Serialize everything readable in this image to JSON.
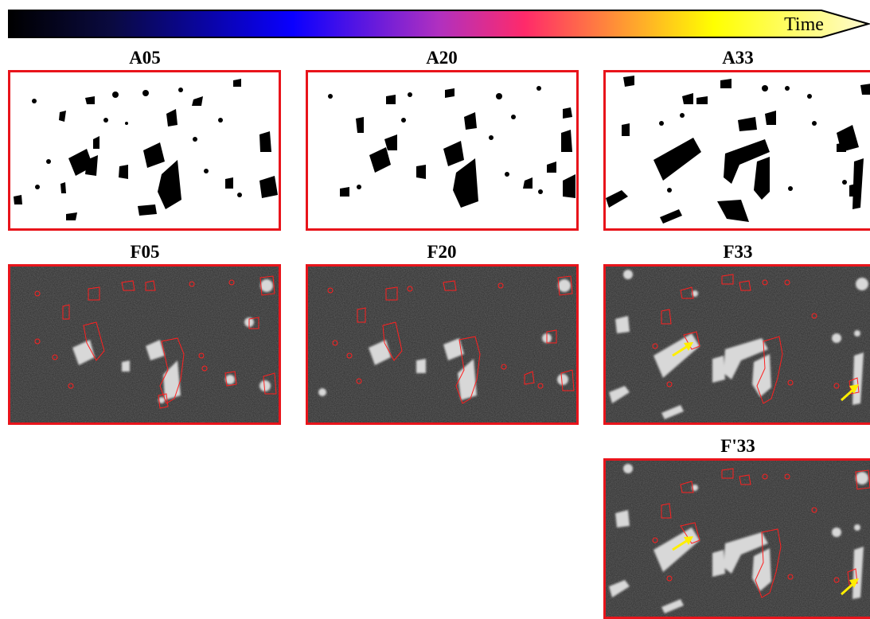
{
  "timebar": {
    "label": "Time"
  },
  "panels": {
    "A05": {
      "title": "A05"
    },
    "A20": {
      "title": "A20"
    },
    "A33": {
      "title": "A33"
    },
    "F05": {
      "title": "F05"
    },
    "F20": {
      "title": "F20"
    },
    "F33": {
      "title": "F33"
    },
    "Fp33": {
      "title": "F'33"
    }
  },
  "colors": {
    "frame": "#e8141b",
    "contour": "#ff2020",
    "arrow": "#ffee00",
    "binary_fg": "#000000",
    "binary_bg": "#ffffff",
    "gray_bg": "#2b2b2b"
  },
  "icons": {
    "arrow": "yellow-arrow-icon"
  }
}
